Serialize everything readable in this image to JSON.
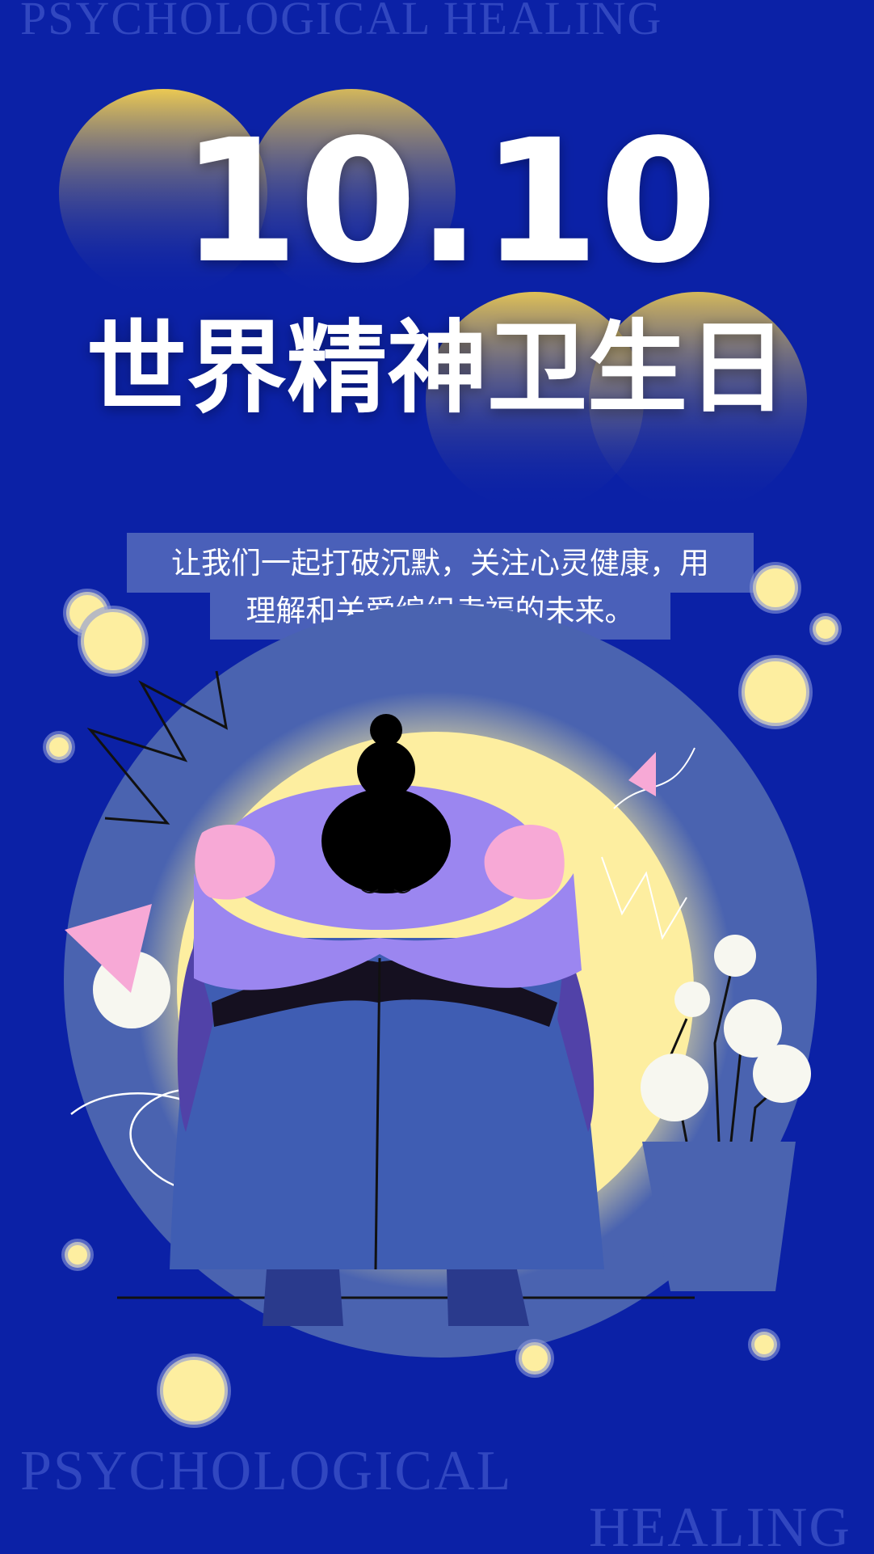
{
  "header": {
    "watermark": "PSYCHOLOGICAL HEALING",
    "date": "10.10",
    "title": "世界精神卫生日"
  },
  "subtitle": {
    "lines": [
      "让我们一起打破沉默，关注心灵健康，用",
      "理解和关爱编织幸福的未来。"
    ]
  },
  "footer": {
    "watermark_left": "PSYCHOLOGICAL",
    "watermark_right": "HEALING"
  }
}
